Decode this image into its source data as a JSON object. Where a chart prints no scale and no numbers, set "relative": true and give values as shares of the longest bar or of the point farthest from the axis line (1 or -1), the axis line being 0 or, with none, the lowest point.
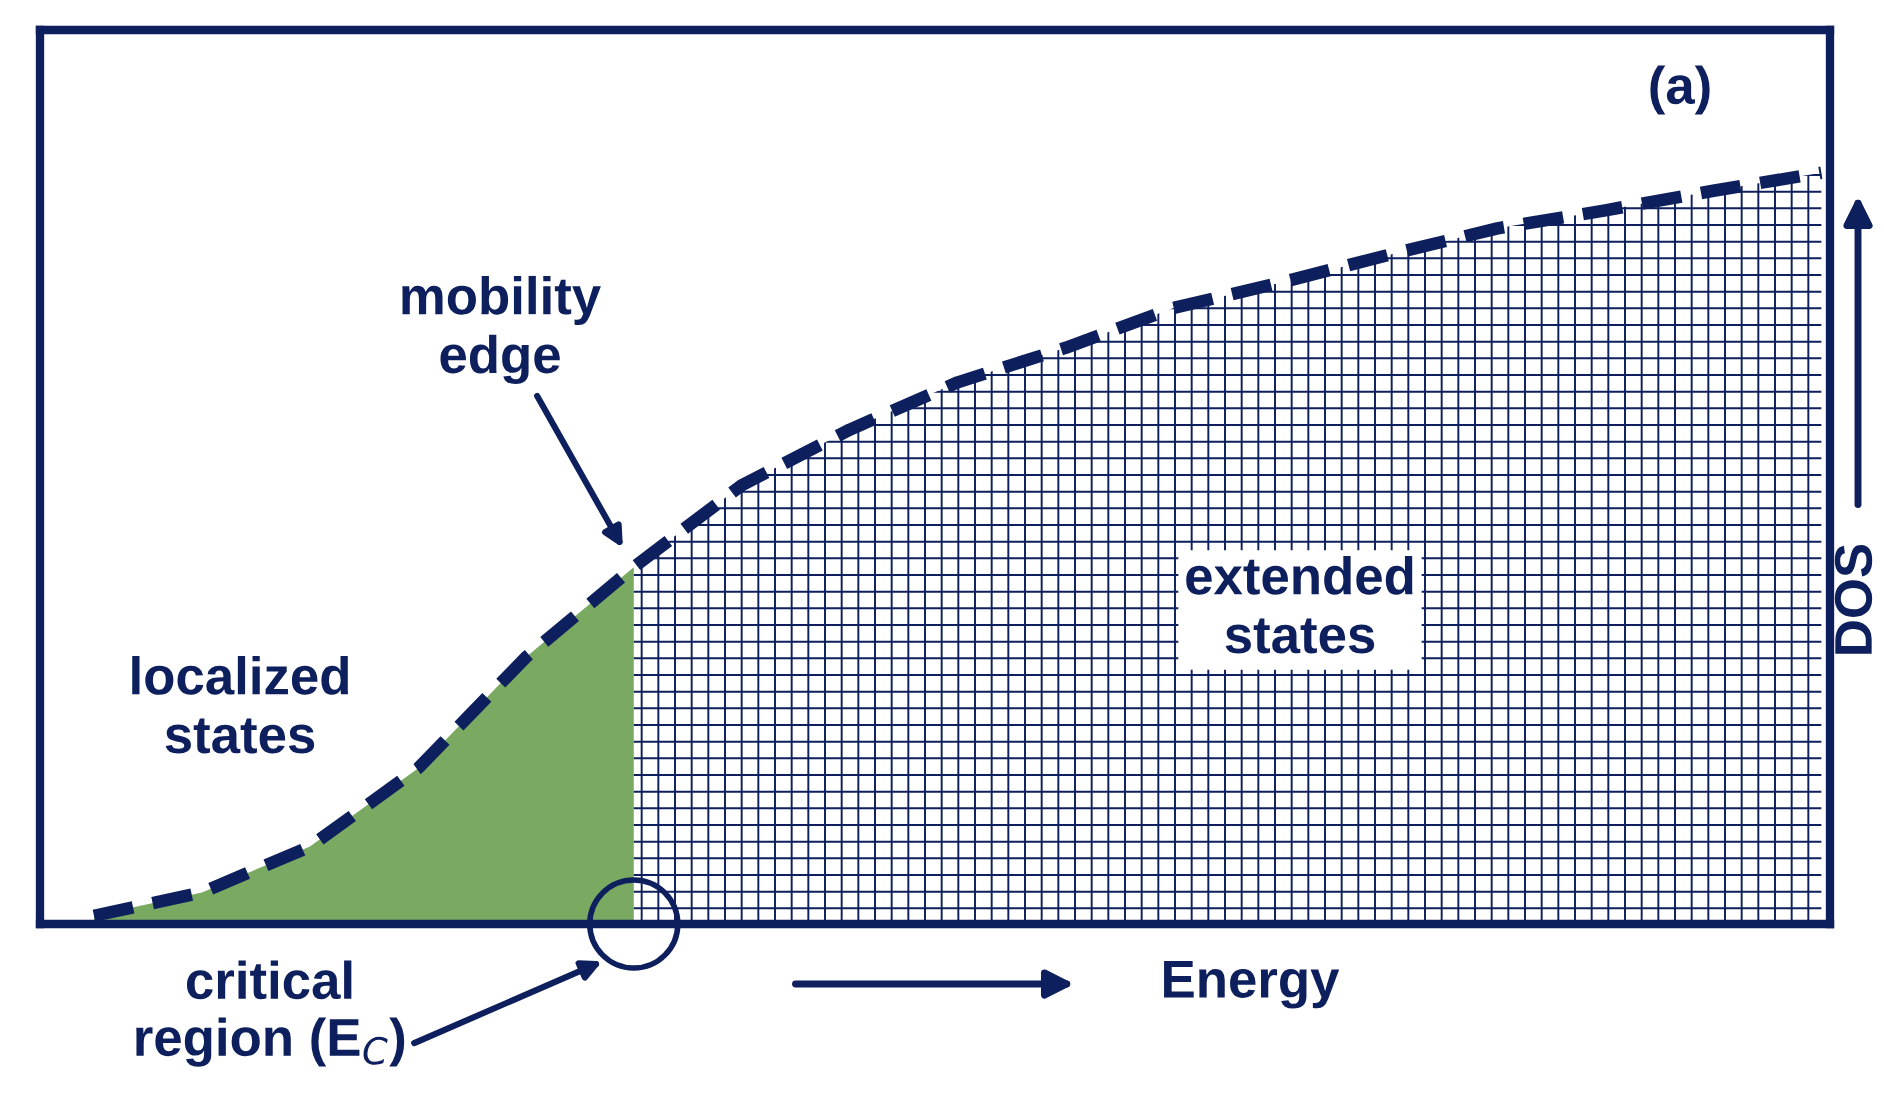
{
  "chart_data": {
    "type": "line",
    "relative": true,
    "xlabel": "Energy",
    "ylabel": "DOS",
    "categories": [
      null,
      null,
      null,
      null,
      null,
      null,
      null,
      null,
      null,
      null,
      null,
      null,
      null,
      null,
      null,
      null,
      null
    ],
    "series": [
      {
        "color": "#0d1f5c",
        "line_style": "dashed",
        "values": [
          0.011,
          0.042,
          0.103,
          0.207,
          0.355,
          0.475,
          0.584,
          0.658,
          0.721,
          0.767,
          0.82,
          0.854,
          0.891,
          0.926,
          0.95,
          0.976,
          1.0
        ]
      },
      {
        "type": "area",
        "color": "#4e8c2e",
        "values": [
          0.011,
          0.042,
          0.103,
          0.207,
          0.355,
          0.475,
          null,
          null,
          null,
          null,
          null,
          null,
          null,
          null,
          null,
          null,
          null
        ]
      },
      {
        "type": "area",
        "color": "#0d1f5c",
        "line_style": "dashed",
        "values": [
          null,
          null,
          null,
          null,
          null,
          0.475,
          0.584,
          0.658,
          0.721,
          0.767,
          0.82,
          0.854,
          0.891,
          0.926,
          0.95,
          0.976,
          1.0
        ]
      }
    ],
    "annotations": [
      "(a)",
      "mobility edge",
      "localized states",
      "extended states",
      "critical region (E$_{C}$)"
    ]
  }
}
